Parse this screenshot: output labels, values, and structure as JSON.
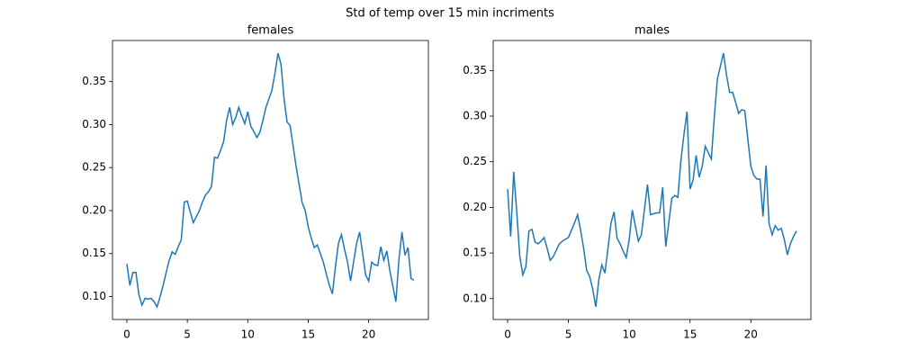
{
  "title": "Std of temp over 15 min incriments",
  "chart_data": [
    {
      "type": "line",
      "title": "females",
      "x": [
        0,
        0.25,
        0.5,
        0.75,
        1,
        1.25,
        1.5,
        1.75,
        2,
        2.25,
        2.5,
        2.75,
        3,
        3.25,
        3.5,
        3.75,
        4,
        4.25,
        4.5,
        4.75,
        5,
        5.25,
        5.5,
        5.75,
        6,
        6.25,
        6.5,
        6.75,
        7,
        7.25,
        7.5,
        7.75,
        8,
        8.25,
        8.5,
        8.75,
        9,
        9.25,
        9.5,
        9.75,
        10,
        10.25,
        10.5,
        10.75,
        11,
        11.25,
        11.5,
        11.75,
        12,
        12.25,
        12.5,
        12.75,
        13,
        13.25,
        13.5,
        13.75,
        14,
        14.25,
        14.5,
        14.75,
        15,
        15.25,
        15.5,
        15.75,
        16,
        16.25,
        16.5,
        16.75,
        17,
        17.25,
        17.5,
        17.75,
        18,
        18.25,
        18.5,
        18.75,
        19,
        19.25,
        19.5,
        19.75,
        20,
        20.25,
        20.5,
        20.75,
        21,
        21.25,
        21.5,
        21.75,
        22,
        22.25,
        22.5,
        22.75,
        23,
        23.25,
        23.5,
        23.75
      ],
      "series": [
        {
          "color": "#1f77b4",
          "values": [
            0.138,
            0.113,
            0.128,
            0.128,
            0.102,
            0.09,
            0.098,
            0.097,
            0.098,
            0.094,
            0.088,
            0.1,
            0.113,
            0.128,
            0.142,
            0.152,
            0.149,
            0.158,
            0.166,
            0.21,
            0.211,
            0.198,
            0.186,
            0.193,
            0.2,
            0.21,
            0.218,
            0.222,
            0.228,
            0.262,
            0.261,
            0.27,
            0.28,
            0.305,
            0.32,
            0.3,
            0.308,
            0.32,
            0.31,
            0.301,
            0.315,
            0.298,
            0.292,
            0.285,
            0.291,
            0.305,
            0.32,
            0.33,
            0.34,
            0.36,
            0.383,
            0.37,
            0.33,
            0.303,
            0.299,
            0.275,
            0.251,
            0.23,
            0.209,
            0.2,
            0.181,
            0.168,
            0.157,
            0.16,
            0.15,
            0.14,
            0.126,
            0.113,
            0.103,
            0.135,
            0.162,
            0.172,
            0.155,
            0.14,
            0.118,
            0.14,
            0.162,
            0.175,
            0.15,
            0.125,
            0.118,
            0.14,
            0.137,
            0.136,
            0.158,
            0.142,
            0.153,
            0.13,
            0.112,
            0.094,
            0.143,
            0.175,
            0.148,
            0.157,
            0.121,
            0.119
          ]
        }
      ],
      "xlim": [
        -1.1875,
        24.9375
      ],
      "xticks": [
        0,
        5,
        10,
        15,
        20
      ],
      "ylim": [
        0.0733,
        0.3978
      ],
      "yticks": [
        {
          "value": 0.1,
          "label": "0.10"
        },
        0.15,
        {
          "value": 0.2,
          "label": "0.20"
        },
        0.25,
        {
          "value": 0.3,
          "label": "0.30"
        },
        0.35
      ]
    },
    {
      "type": "line",
      "title": "males",
      "x": [
        0,
        0.25,
        0.5,
        0.75,
        1,
        1.25,
        1.5,
        1.75,
        2,
        2.25,
        2.5,
        2.75,
        3,
        3.25,
        3.5,
        3.75,
        4,
        4.25,
        4.5,
        4.75,
        5,
        5.25,
        5.5,
        5.75,
        6,
        6.25,
        6.5,
        6.75,
        7,
        7.25,
        7.5,
        7.75,
        8,
        8.25,
        8.5,
        8.75,
        9,
        9.25,
        9.5,
        9.75,
        10,
        10.25,
        10.5,
        10.75,
        11,
        11.25,
        11.5,
        11.75,
        12,
        12.25,
        12.5,
        12.75,
        13,
        13.25,
        13.5,
        13.75,
        14,
        14.25,
        14.5,
        14.75,
        15,
        15.25,
        15.5,
        15.75,
        16,
        16.25,
        16.5,
        16.75,
        17,
        17.25,
        17.5,
        17.75,
        18,
        18.25,
        18.5,
        18.75,
        19,
        19.25,
        19.5,
        19.75,
        20,
        20.25,
        20.5,
        20.75,
        21,
        21.25,
        21.5,
        21.75,
        22,
        22.25,
        22.5,
        22.75,
        23,
        23.25,
        23.5,
        23.75
      ],
      "series": [
        {
          "color": "#1f77b4",
          "values": [
            0.22,
            0.168,
            0.239,
            0.195,
            0.146,
            0.126,
            0.135,
            0.174,
            0.176,
            0.162,
            0.16,
            0.163,
            0.167,
            0.155,
            0.142,
            0.146,
            0.153,
            0.16,
            0.163,
            0.165,
            0.167,
            0.175,
            0.183,
            0.192,
            0.175,
            0.155,
            0.131,
            0.124,
            0.11,
            0.091,
            0.121,
            0.137,
            0.128,
            0.155,
            0.183,
            0.195,
            0.166,
            0.16,
            0.152,
            0.145,
            0.165,
            0.197,
            0.18,
            0.163,
            0.17,
            0.198,
            0.225,
            0.192,
            0.193,
            0.194,
            0.194,
            0.222,
            0.157,
            0.183,
            0.21,
            0.213,
            0.211,
            0.252,
            0.28,
            0.305,
            0.22,
            0.23,
            0.257,
            0.233,
            0.245,
            0.267,
            0.26,
            0.253,
            0.3,
            0.341,
            0.355,
            0.369,
            0.345,
            0.326,
            0.326,
            0.315,
            0.303,
            0.307,
            0.306,
            0.275,
            0.245,
            0.235,
            0.231,
            0.231,
            0.19,
            0.246,
            0.182,
            0.17,
            0.18,
            0.175,
            0.177,
            0.165,
            0.148,
            0.16,
            0.168,
            0.174
          ]
        }
      ],
      "xlim": [
        -1.1875,
        24.9375
      ],
      "xticks": [
        0,
        5,
        10,
        15,
        20
      ],
      "ylim": [
        0.0771,
        0.3829
      ],
      "yticks": [
        {
          "value": 0.1,
          "label": "0.10"
        },
        0.15,
        {
          "value": 0.2,
          "label": "0.20"
        },
        0.25,
        {
          "value": 0.3,
          "label": "0.30"
        },
        0.35
      ]
    }
  ]
}
